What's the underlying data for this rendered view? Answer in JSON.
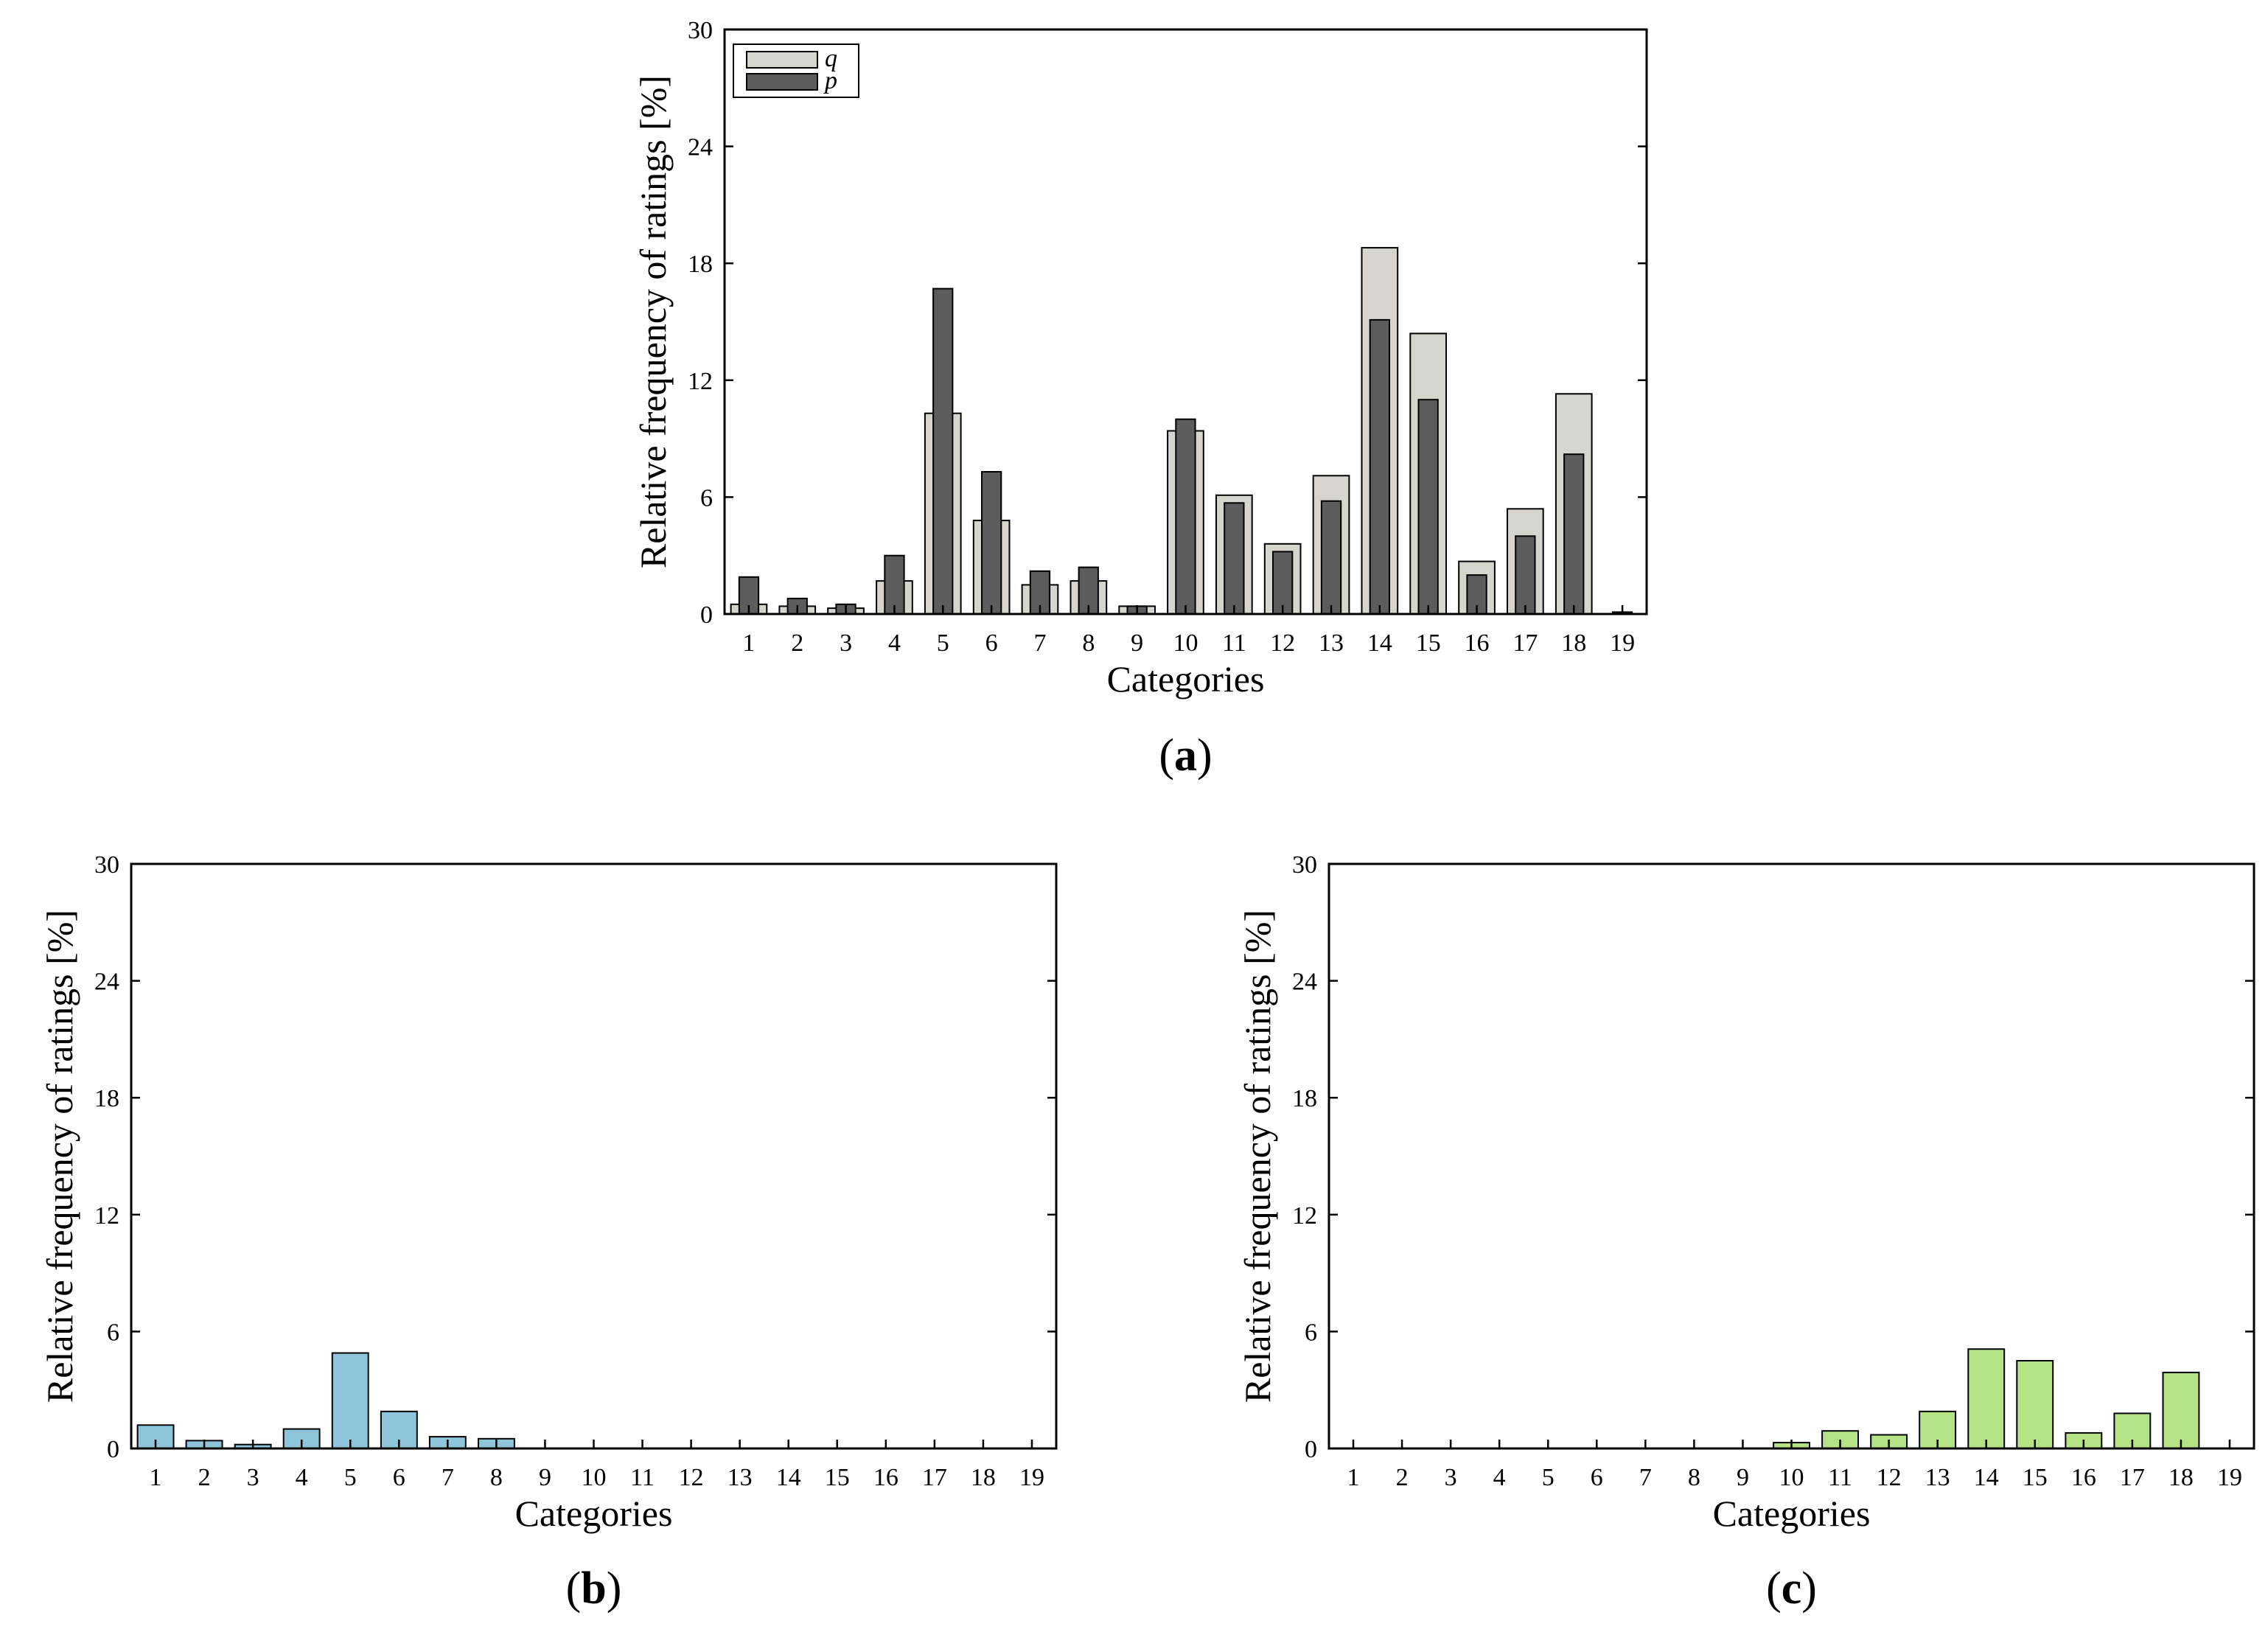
{
  "colors": {
    "q": "#d6d4cc",
    "p": "#5c5c5c",
    "b": "#8ec5da",
    "c": "#b4e385"
  },
  "chart_data": [
    {
      "id": "a",
      "type": "bar",
      "panel_label": "a",
      "title": "",
      "xlabel": "Categories",
      "ylabel": "Relative frequency of ratings [%]",
      "ylim": [
        0,
        30
      ],
      "yticks": [
        "0",
        "6",
        "12",
        "18",
        "24",
        "30"
      ],
      "categories": [
        "1",
        "2",
        "3",
        "4",
        "5",
        "6",
        "7",
        "8",
        "9",
        "10",
        "11",
        "12",
        "13",
        "14",
        "15",
        "16",
        "17",
        "18",
        "19"
      ],
      "legend_position": "top-left",
      "series": [
        {
          "name": "q",
          "values": [
            0.5,
            0.4,
            0.3,
            1.7,
            10.3,
            4.8,
            1.5,
            1.7,
            0.4,
            9.4,
            6.1,
            3.6,
            7.1,
            18.8,
            14.4,
            2.7,
            5.4,
            11.3,
            0
          ]
        },
        {
          "name": "p",
          "values": [
            1.9,
            0.8,
            0.5,
            3.0,
            16.7,
            7.3,
            2.2,
            2.4,
            0.4,
            10.0,
            5.7,
            3.2,
            5.8,
            15.1,
            11.0,
            2.0,
            4.0,
            8.2,
            0.1
          ]
        }
      ]
    },
    {
      "id": "b",
      "type": "bar",
      "panel_label": "b",
      "title": "",
      "xlabel": "Categories",
      "ylabel": "Relative frequency of ratings [%]",
      "ylim": [
        0,
        30
      ],
      "yticks": [
        "0",
        "6",
        "12",
        "18",
        "24",
        "30"
      ],
      "categories": [
        "1",
        "2",
        "3",
        "4",
        "5",
        "6",
        "7",
        "8",
        "9",
        "10",
        "11",
        "12",
        "13",
        "14",
        "15",
        "16",
        "17",
        "18",
        "19"
      ],
      "series": [
        {
          "name": "",
          "values": [
            1.2,
            0.4,
            0.2,
            1.0,
            4.9,
            1.9,
            0.6,
            0.5,
            0,
            0,
            0,
            0,
            0,
            0,
            0,
            0,
            0,
            0,
            0
          ]
        }
      ]
    },
    {
      "id": "c",
      "type": "bar",
      "panel_label": "c",
      "title": "",
      "xlabel": "Categories",
      "ylabel": "Relative frequency of ratings [%]",
      "ylim": [
        0,
        30
      ],
      "yticks": [
        "0",
        "6",
        "12",
        "18",
        "24",
        "30"
      ],
      "categories": [
        "1",
        "2",
        "3",
        "4",
        "5",
        "6",
        "7",
        "8",
        "9",
        "10",
        "11",
        "12",
        "13",
        "14",
        "15",
        "16",
        "17",
        "18",
        "19"
      ],
      "series": [
        {
          "name": "",
          "values": [
            0,
            0,
            0,
            0,
            0,
            0,
            0,
            0,
            0,
            0.3,
            0.9,
            0.7,
            1.9,
            5.1,
            4.5,
            0.8,
            1.8,
            3.9,
            0
          ]
        }
      ]
    }
  ]
}
